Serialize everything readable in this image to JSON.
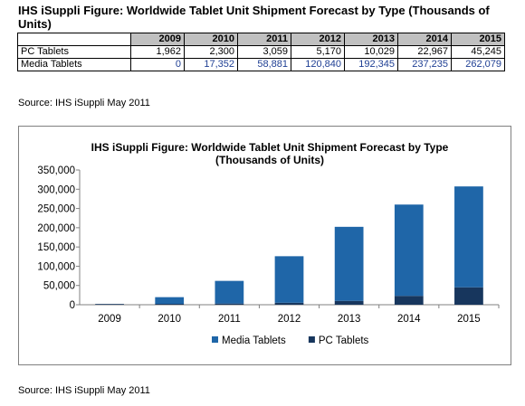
{
  "table": {
    "title": "IHS iSuppli Figure: Worldwide Tablet Unit Shipment Forecast by Type (Thousands of Units)",
    "headers": [
      "",
      "2009",
      "2010",
      "2011",
      "2012",
      "2013",
      "2014",
      "2015"
    ],
    "rows": [
      {
        "label": "PC Tablets",
        "values": [
          "1,962",
          "2,300",
          "3,059",
          "5,170",
          "10,029",
          "22,967",
          "45,245"
        ]
      },
      {
        "label": "Media Tablets",
        "values": [
          "0",
          "17,352",
          "58,881",
          "120,840",
          "192,345",
          "237,235",
          "262,079"
        ]
      }
    ]
  },
  "source_top": "Source: IHS iSuppli May 2011",
  "source_bottom": "Source: IHS iSuppli May 2011",
  "chart_data": {
    "type": "bar",
    "stacked": true,
    "title_lines": [
      "IHS iSuppli Figure: Worldwide  Tablet Unit Shipment Forecast by Type",
      "(Thousands of Units)"
    ],
    "categories": [
      "2009",
      "2010",
      "2011",
      "2012",
      "2013",
      "2014",
      "2015"
    ],
    "series": [
      {
        "name": "PC Tablets",
        "color": "#17365d",
        "values": [
          1962,
          2300,
          3059,
          5170,
          10029,
          22967,
          45245
        ]
      },
      {
        "name": "Media Tablets",
        "color": "#1f66a8",
        "values": [
          0,
          17352,
          58881,
          120840,
          192345,
          237235,
          262079
        ]
      }
    ],
    "ylim": [
      0,
      350000
    ],
    "ytick_step": 50000,
    "ytick_labels": [
      "0",
      "50,000",
      "100,000",
      "150,000",
      "200,000",
      "250,000",
      "300,000",
      "350,000"
    ],
    "legend": [
      "Media Tablets",
      "PC Tablets"
    ],
    "legend_position": "bottom",
    "grid": false
  }
}
